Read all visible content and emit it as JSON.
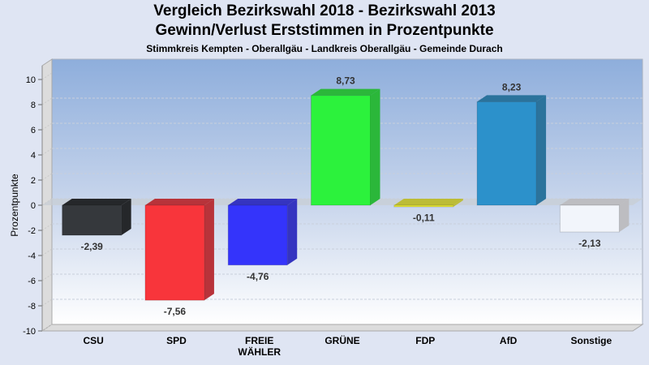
{
  "chart_data": {
    "type": "bar",
    "title": "Vergleich Bezirkswahl 2018 - Bezirkswahl 2013",
    "subtitle": "Gewinn/Verlust Erststimmen in Prozentpunkte",
    "subsubtitle": "Stimmkreis Kempten - Oberallgäu - Landkreis Oberallgäu - Gemeinde Durach",
    "xlabel": "",
    "ylabel": "Prozentpunkte",
    "ylim": [
      -10,
      10
    ],
    "yticks": [
      10,
      8,
      6,
      4,
      2,
      0,
      -2,
      -4,
      -6,
      -8,
      -10
    ],
    "grid": true,
    "categories": [
      {
        "lines": [
          "CSU"
        ]
      },
      {
        "lines": [
          "SPD"
        ]
      },
      {
        "lines": [
          "FREIE",
          "WÄHLER"
        ]
      },
      {
        "lines": [
          "GRÜNE"
        ]
      },
      {
        "lines": [
          "FDP"
        ]
      },
      {
        "lines": [
          "AfD"
        ]
      },
      {
        "lines": [
          "Sonstige"
        ]
      }
    ],
    "values": [
      -2.39,
      -7.56,
      -4.76,
      8.73,
      -0.11,
      8.23,
      -2.13
    ],
    "value_labels": [
      "-2,39",
      "-7,56",
      "-4,76",
      "8,73",
      "-0,11",
      "8,23",
      "-2,13"
    ],
    "colors": [
      "#35383c",
      "#f8353b",
      "#3434fb",
      "#2cf23c",
      "#e8e833",
      "#2c91cb",
      "#f2f5fb"
    ],
    "side_colors": [
      "#25272a",
      "#b8333a",
      "#3534c0",
      "#2bb73a",
      "#bcbc36",
      "#2b739c",
      "#bdbdc1"
    ]
  }
}
